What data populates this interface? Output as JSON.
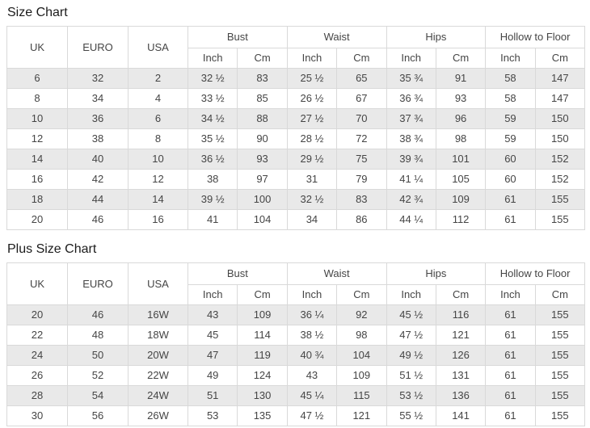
{
  "colors": {
    "stripe": "#e9e9e9",
    "border": "#d9d9d9",
    "cell_text": "#454545",
    "title_text": "#1b1b1b",
    "bg": "#ffffff"
  },
  "tables": [
    {
      "title": "Size Chart",
      "headers": {
        "uk": "UK",
        "euro": "EURO",
        "usa": "USA",
        "bust": "Bust",
        "waist": "Waist",
        "hips": "Hips",
        "hollow_to_floor": "Hollow to Floor",
        "inch": "Inch",
        "cm": "Cm"
      },
      "rows": [
        [
          "6",
          "32",
          "2",
          "32 ½",
          "83",
          "25 ½",
          "65",
          "35 ¾",
          "91",
          "58",
          "147"
        ],
        [
          "8",
          "34",
          "4",
          "33 ½",
          "85",
          "26 ½",
          "67",
          "36 ¾",
          "93",
          "58",
          "147"
        ],
        [
          "10",
          "36",
          "6",
          "34 ½",
          "88",
          "27 ½",
          "70",
          "37 ¾",
          "96",
          "59",
          "150"
        ],
        [
          "12",
          "38",
          "8",
          "35 ½",
          "90",
          "28 ½",
          "72",
          "38 ¾",
          "98",
          "59",
          "150"
        ],
        [
          "14",
          "40",
          "10",
          "36 ½",
          "93",
          "29 ½",
          "75",
          "39 ¾",
          "101",
          "60",
          "152"
        ],
        [
          "16",
          "42",
          "12",
          "38",
          "97",
          "31",
          "79",
          "41 ¼",
          "105",
          "60",
          "152"
        ],
        [
          "18",
          "44",
          "14",
          "39 ½",
          "100",
          "32 ½",
          "83",
          "42 ¾",
          "109",
          "61",
          "155"
        ],
        [
          "20",
          "46",
          "16",
          "41",
          "104",
          "34",
          "86",
          "44 ¼",
          "112",
          "61",
          "155"
        ]
      ]
    },
    {
      "title": "Plus Size Chart",
      "headers": {
        "uk": "UK",
        "euro": "EURO",
        "usa": "USA",
        "bust": "Bust",
        "waist": "Waist",
        "hips": "Hips",
        "hollow_to_floor": "Hollow to Floor",
        "inch": "Inch",
        "cm": "Cm"
      },
      "rows": [
        [
          "20",
          "46",
          "16W",
          "43",
          "109",
          "36 ¼",
          "92",
          "45 ½",
          "116",
          "61",
          "155"
        ],
        [
          "22",
          "48",
          "18W",
          "45",
          "114",
          "38 ½",
          "98",
          "47 ½",
          "121",
          "61",
          "155"
        ],
        [
          "24",
          "50",
          "20W",
          "47",
          "119",
          "40 ¾",
          "104",
          "49 ½",
          "126",
          "61",
          "155"
        ],
        [
          "26",
          "52",
          "22W",
          "49",
          "124",
          "43",
          "109",
          "51 ½",
          "131",
          "61",
          "155"
        ],
        [
          "28",
          "54",
          "24W",
          "51",
          "130",
          "45 ¼",
          "115",
          "53 ½",
          "136",
          "61",
          "155"
        ],
        [
          "30",
          "56",
          "26W",
          "53",
          "135",
          "47 ½",
          "121",
          "55 ½",
          "141",
          "61",
          "155"
        ]
      ]
    }
  ]
}
